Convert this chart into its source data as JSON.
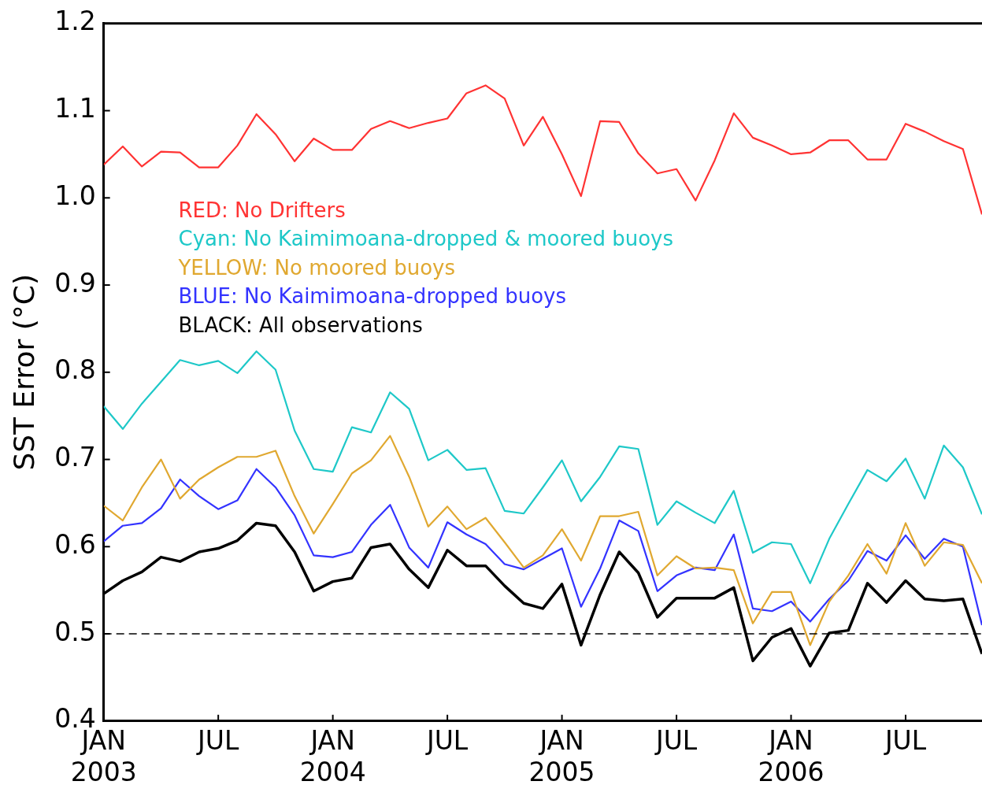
{
  "chart_data": {
    "type": "line",
    "ylabel": "SST Error (°C)",
    "x": [
      "2003-01",
      "2003-02",
      "2003-03",
      "2003-04",
      "2003-05",
      "2003-06",
      "2003-07",
      "2003-08",
      "2003-09",
      "2003-10",
      "2003-11",
      "2003-12",
      "2004-01",
      "2004-02",
      "2004-03",
      "2004-04",
      "2004-05",
      "2004-06",
      "2004-07",
      "2004-08",
      "2004-09",
      "2004-10",
      "2004-11",
      "2004-12",
      "2005-01",
      "2005-02",
      "2005-03",
      "2005-04",
      "2005-05",
      "2005-06",
      "2005-07",
      "2005-08",
      "2005-09",
      "2005-10",
      "2005-11",
      "2005-12",
      "2006-01",
      "2006-02",
      "2006-03",
      "2006-04",
      "2006-05",
      "2006-06",
      "2006-07",
      "2006-08",
      "2006-09",
      "2006-10",
      "2006-11"
    ],
    "series": [
      {
        "name": "RED: No Drifters",
        "color": "#ff3333",
        "values": [
          1.038,
          1.059,
          1.036,
          1.053,
          1.052,
          1.035,
          1.035,
          1.06,
          1.096,
          1.073,
          1.042,
          1.068,
          1.055,
          1.055,
          1.079,
          1.088,
          1.08,
          1.086,
          1.091,
          1.12,
          1.129,
          1.114,
          1.06,
          1.093,
          1.05,
          1.002,
          1.088,
          1.087,
          1.051,
          1.028,
          1.033,
          0.997,
          1.043,
          1.097,
          1.069,
          1.06,
          1.05,
          1.052,
          1.066,
          1.066,
          1.044,
          1.044,
          1.085,
          1.076,
          1.065,
          1.056,
          0.981
        ]
      },
      {
        "name": "Cyan: No Kaimimoana-dropped & moored buoys",
        "color": "#1ec8c8",
        "values": [
          0.761,
          0.735,
          0.764,
          0.789,
          0.814,
          0.808,
          0.813,
          0.799,
          0.824,
          0.803,
          0.733,
          0.689,
          0.686,
          0.737,
          0.731,
          0.777,
          0.758,
          0.699,
          0.711,
          0.688,
          0.69,
          0.641,
          0.638,
          0.668,
          0.699,
          0.652,
          0.68,
          0.715,
          0.712,
          0.625,
          0.652,
          0.639,
          0.627,
          0.664,
          0.593,
          0.605,
          0.603,
          0.558,
          0.609,
          0.649,
          0.688,
          0.675,
          0.701,
          0.655,
          0.716,
          0.691,
          0.637
        ]
      },
      {
        "name": "YELLOW: No moored buoys",
        "color": "#e0a830",
        "values": [
          0.647,
          0.63,
          0.668,
          0.7,
          0.655,
          0.677,
          0.691,
          0.703,
          0.703,
          0.71,
          0.658,
          0.615,
          0.649,
          0.684,
          0.699,
          0.727,
          0.68,
          0.623,
          0.646,
          0.62,
          0.633,
          0.605,
          0.576,
          0.59,
          0.62,
          0.584,
          0.635,
          0.635,
          0.64,
          0.567,
          0.589,
          0.575,
          0.576,
          0.573,
          0.512,
          0.548,
          0.548,
          0.487,
          0.537,
          0.567,
          0.603,
          0.569,
          0.627,
          0.578,
          0.605,
          0.602,
          0.558
        ]
      },
      {
        "name": "BLUE: No Kaimimoana-dropped buoys",
        "color": "#3333ff",
        "values": [
          0.606,
          0.624,
          0.627,
          0.644,
          0.677,
          0.658,
          0.643,
          0.653,
          0.689,
          0.668,
          0.636,
          0.59,
          0.588,
          0.594,
          0.625,
          0.648,
          0.599,
          0.576,
          0.628,
          0.614,
          0.603,
          0.58,
          0.574,
          0.586,
          0.598,
          0.531,
          0.575,
          0.63,
          0.618,
          0.549,
          0.567,
          0.576,
          0.573,
          0.614,
          0.529,
          0.526,
          0.537,
          0.514,
          0.54,
          0.561,
          0.595,
          0.584,
          0.613,
          0.586,
          0.609,
          0.6,
          0.51
        ]
      },
      {
        "name": "BLACK: All observations",
        "color": "#000000",
        "values": [
          0.546,
          0.561,
          0.571,
          0.588,
          0.583,
          0.594,
          0.598,
          0.607,
          0.627,
          0.624,
          0.594,
          0.549,
          0.56,
          0.564,
          0.599,
          0.603,
          0.574,
          0.553,
          0.596,
          0.578,
          0.578,
          0.555,
          0.535,
          0.529,
          0.557,
          0.487,
          0.545,
          0.594,
          0.57,
          0.519,
          0.541,
          0.541,
          0.541,
          0.553,
          0.469,
          0.496,
          0.506,
          0.463,
          0.501,
          0.504,
          0.558,
          0.536,
          0.561,
          0.54,
          0.538,
          0.54,
          0.477
        ]
      }
    ],
    "xlim": [
      "2003-01",
      "2006-11"
    ],
    "xticks": [
      {
        "value": "2003-01",
        "label": "JAN 2003"
      },
      {
        "value": "2003-07",
        "label": "JUL"
      },
      {
        "value": "2004-01",
        "label": "JAN 2004"
      },
      {
        "value": "2004-07",
        "label": "JUL"
      },
      {
        "value": "2005-01",
        "label": "JAN 2005"
      },
      {
        "value": "2005-07",
        "label": "JUL"
      },
      {
        "value": "2006-01",
        "label": "JAN 2006"
      },
      {
        "value": "2006-07",
        "label": "JUL"
      }
    ],
    "ylim": [
      0.4,
      1.2
    ],
    "yticks": [
      0.4,
      0.5,
      0.6,
      0.7,
      0.8,
      0.9,
      {
        "value": 1,
        "label": "1.0"
      },
      1.1,
      1.2
    ],
    "ref_lines": [
      {
        "axis": "y",
        "value": 0.5,
        "color": "#000000",
        "line_style": "dashed"
      }
    ],
    "legend": "top left",
    "grid": false,
    "marker": "none",
    "line_style": "solid"
  }
}
